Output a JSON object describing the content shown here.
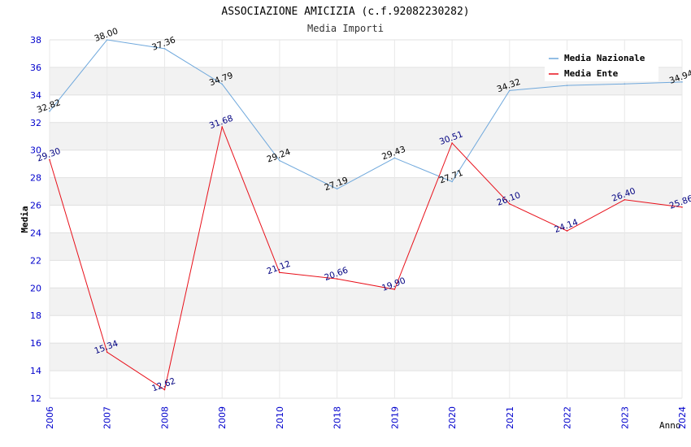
{
  "chart_data": {
    "type": "line",
    "title": "ASSOCIAZIONE AMICIZIA (c.f.92082230282)",
    "subtitle": "Media Importi",
    "xlabel": "Anno",
    "ylabel": "Media",
    "categories": [
      "2006",
      "2007",
      "2008",
      "2009",
      "2010",
      "2018",
      "2019",
      "2020",
      "2021",
      "2022",
      "2023",
      "2024"
    ],
    "ylim": [
      12,
      38
    ],
    "yticks": [
      "12",
      "14",
      "16",
      "18",
      "20",
      "22",
      "24",
      "26",
      "28",
      "30",
      "32",
      "34",
      "36",
      "38"
    ],
    "grid": "horizontal alternating bands",
    "legend_position": "top-right",
    "series": [
      {
        "name": "Media Nazionale",
        "color": "#6fa8dc",
        "label_color": "#000000",
        "values": [
          32.82,
          38.0,
          37.36,
          34.79,
          29.24,
          27.19,
          29.43,
          27.71,
          34.32,
          34.69,
          34.8,
          34.94
        ],
        "data_labels": [
          "32.82",
          "38.00",
          "37.36",
          "34.79",
          "29.24",
          "27.19",
          "29.43",
          "27.71",
          "34.32",
          "",
          "",
          "34.94"
        ]
      },
      {
        "name": "Media Ente",
        "color": "#e8101a",
        "label_color": "#000080",
        "values": [
          29.3,
          15.34,
          12.62,
          31.68,
          21.12,
          20.66,
          19.9,
          30.51,
          26.1,
          24.14,
          26.4,
          25.86
        ],
        "data_labels": [
          "29.30",
          "15.34",
          "12.62",
          "31.68",
          "21.12",
          "20.66",
          "19.90",
          "30.51",
          "26.10",
          "24.14",
          "26.40",
          "25.86"
        ]
      }
    ]
  }
}
